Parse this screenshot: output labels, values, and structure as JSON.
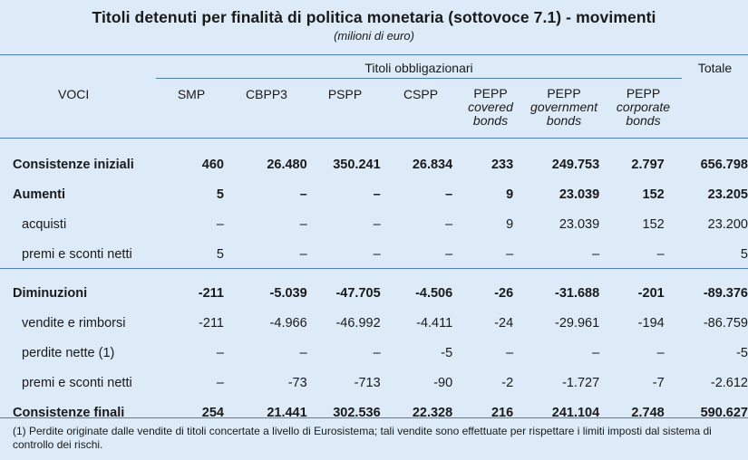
{
  "title": "Titoli detenuti per finalità di politica monetaria (sottovoce 7.1) - movimenti",
  "subtitle": "(milioni di euro)",
  "header": {
    "voci": "VOCI",
    "group": "Titoli obbligazionari",
    "totale": "Totale",
    "columns": [
      {
        "top": "SMP",
        "sub": ""
      },
      {
        "top": "CBPP3",
        "sub": ""
      },
      {
        "top": "PSPP",
        "sub": ""
      },
      {
        "top": "CSPP",
        "sub": ""
      },
      {
        "top": "PEPP",
        "sub1": "covered",
        "sub2": "bonds"
      },
      {
        "top": "PEPP",
        "sub1": "government",
        "sub2": "bonds"
      },
      {
        "top": "PEPP",
        "sub1": "corporate",
        "sub2": "bonds"
      }
    ]
  },
  "rows": [
    {
      "label": "Consistenze iniziali",
      "bold": true,
      "values": [
        "460",
        "26.480",
        "350.241",
        "26.834",
        "233",
        "249.753",
        "2.797",
        "656.798"
      ]
    },
    {
      "label": "Aumenti",
      "bold": true,
      "values": [
        "5",
        "–",
        "–",
        "–",
        "9",
        "23.039",
        "152",
        "23.205"
      ]
    },
    {
      "label": "acquisti",
      "bold": false,
      "values": [
        "–",
        "–",
        "–",
        "–",
        "9",
        "23.039",
        "152",
        "23.200"
      ]
    },
    {
      "label": "premi e sconti netti",
      "bold": false,
      "values": [
        "5",
        "–",
        "–",
        "–",
        "–",
        "–",
        "–",
        "5"
      ]
    },
    {
      "label": "Diminuzioni",
      "bold": true,
      "values": [
        "-211",
        "-5.039",
        "-47.705",
        "-4.506",
        "-26",
        "-31.688",
        "-201",
        "-89.376"
      ]
    },
    {
      "label": "vendite e rimborsi",
      "bold": false,
      "values": [
        "-211",
        "-4.966",
        "-46.992",
        "-4.411",
        "-24",
        "-29.961",
        "-194",
        "-86.759"
      ]
    },
    {
      "label": "perdite nette (1)",
      "bold": false,
      "values": [
        "–",
        "–",
        "–",
        "-5",
        "–",
        "–",
        "–",
        "-5"
      ]
    },
    {
      "label": "premi e sconti netti",
      "bold": false,
      "values": [
        "–",
        "-73",
        "-713",
        "-90",
        "-2",
        "-1.727",
        "-7",
        "-2.612"
      ]
    },
    {
      "label": "Consistenze finali",
      "bold": true,
      "values": [
        "254",
        "21.441",
        "302.536",
        "22.328",
        "216",
        "241.104",
        "2.748",
        "590.627"
      ]
    }
  ],
  "footnote": "(1) Perdite originate dalle vendite di titoli concertate a livello di Eurosistema; tali vendite sono effettuate per rispettare i limiti imposti dal sistema di controllo dei rischi."
}
